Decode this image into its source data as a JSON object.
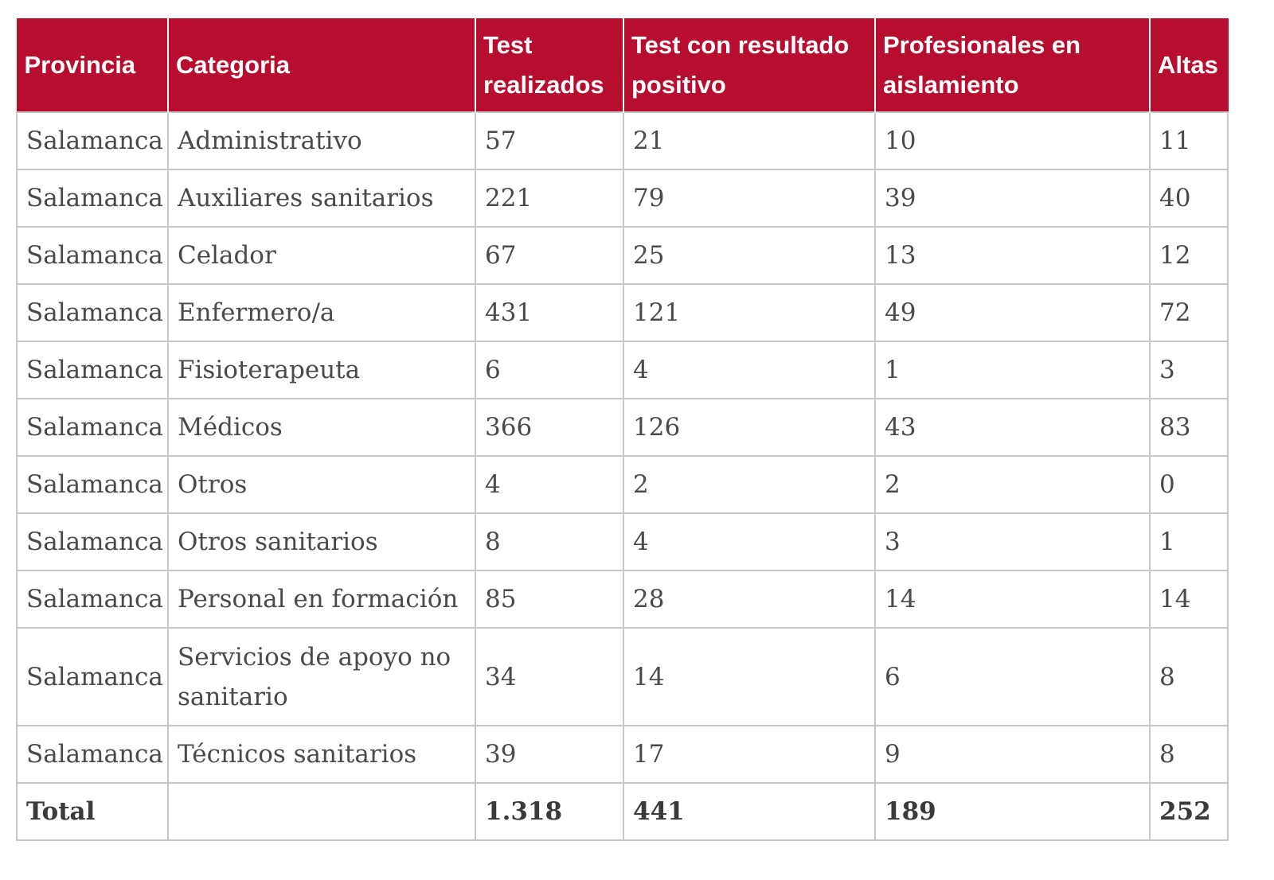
{
  "table": {
    "headers": [
      "Provincia",
      "Categoria",
      "Test realizados",
      "Test con resultado positivo",
      "Profesionales en aislamiento",
      "Altas"
    ],
    "rows": [
      [
        "Salamanca",
        "Administrativo",
        "57",
        "21",
        "10",
        "11"
      ],
      [
        "Salamanca",
        "Auxiliares sanitarios",
        "221",
        "79",
        "39",
        "40"
      ],
      [
        "Salamanca",
        "Celador",
        "67",
        "25",
        "13",
        "12"
      ],
      [
        "Salamanca",
        "Enfermero/a",
        "431",
        "121",
        "49",
        "72"
      ],
      [
        "Salamanca",
        "Fisioterapeuta",
        "6",
        "4",
        "1",
        "3"
      ],
      [
        "Salamanca",
        "Médicos",
        "366",
        "126",
        "43",
        "83"
      ],
      [
        "Salamanca",
        "Otros",
        "4",
        "2",
        "2",
        "0"
      ],
      [
        "Salamanca",
        "Otros sanitarios",
        "8",
        "4",
        "3",
        "1"
      ],
      [
        "Salamanca",
        "Personal en formación",
        "85",
        "28",
        "14",
        "14"
      ],
      [
        "Salamanca",
        "Servicios de apoyo no sanitario",
        "34",
        "14",
        "6",
        "8"
      ],
      [
        "Salamanca",
        "Técnicos sanitarios",
        "39",
        "17",
        "9",
        "8"
      ]
    ],
    "total": [
      "Total",
      "",
      "1.318",
      "441",
      "189",
      "252"
    ]
  },
  "colors": {
    "header_bg": "#b70e2f",
    "header_text": "#ffffff",
    "border": "#c9c9c9",
    "cell_text": "#4a4a4a"
  }
}
